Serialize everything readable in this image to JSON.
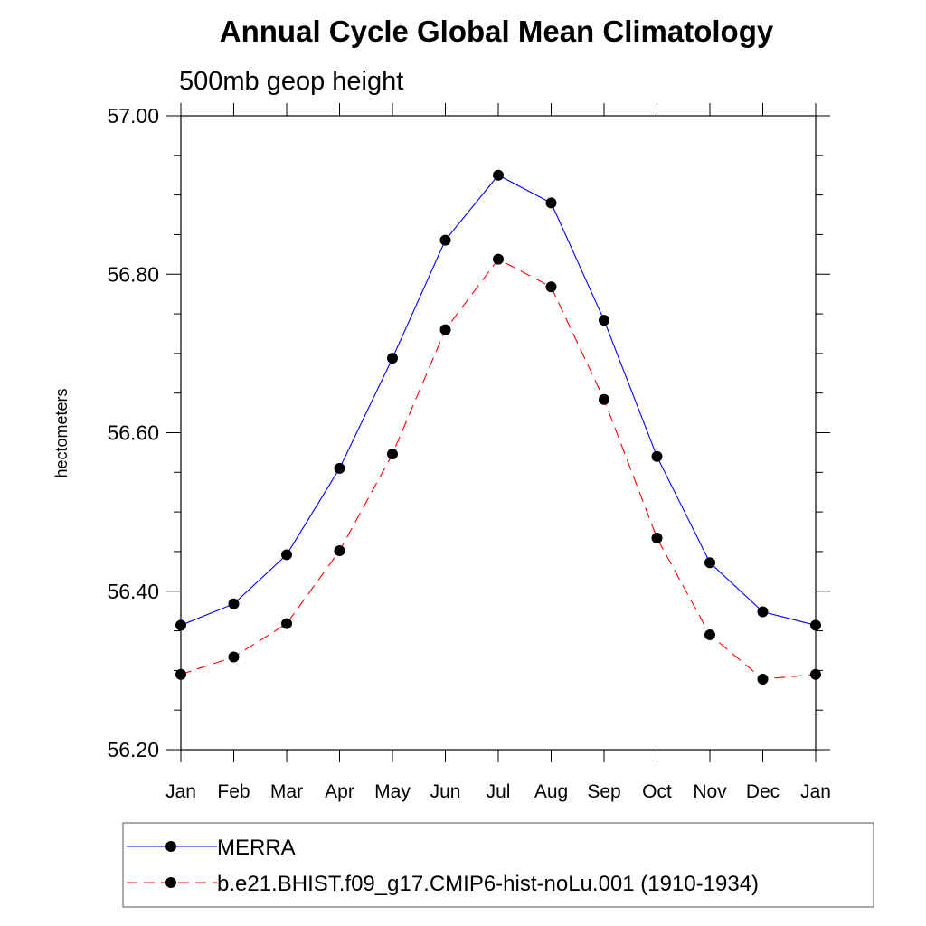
{
  "chart_data": {
    "type": "line",
    "title": "Annual Cycle Global Mean Climatology",
    "subtitle": "500mb geop height",
    "xlabel": "",
    "ylabel": "hectometers",
    "ylim": [
      56.2,
      57.0
    ],
    "yticks": [
      56.2,
      56.4,
      56.6,
      56.8,
      57.0
    ],
    "ytick_labels": [
      "56.20",
      "56.40",
      "56.60",
      "56.80",
      "57.00"
    ],
    "categories": [
      "Jan",
      "Feb",
      "Mar",
      "Apr",
      "May",
      "Jun",
      "Jul",
      "Aug",
      "Sep",
      "Oct",
      "Nov",
      "Dec",
      "Jan"
    ],
    "grid": false,
    "legend_position": "bottom",
    "series": [
      {
        "name": "MERRA",
        "color": "#0000ff",
        "dash": "solid",
        "marker": "filled-circle",
        "values": [
          56.357,
          56.384,
          56.446,
          56.555,
          56.694,
          56.843,
          56.925,
          56.89,
          56.742,
          56.57,
          56.436,
          56.374,
          56.357
        ]
      },
      {
        "name": "b.e21.BHIST.f09_g17.CMIP6-hist-noLu.001 (1910-1934)",
        "color": "#ff0000",
        "dash": "dashed",
        "marker": "filled-circle",
        "values": [
          56.295,
          56.317,
          56.359,
          56.451,
          56.573,
          56.73,
          56.819,
          56.784,
          56.642,
          56.467,
          56.345,
          56.289,
          56.295
        ]
      }
    ]
  }
}
